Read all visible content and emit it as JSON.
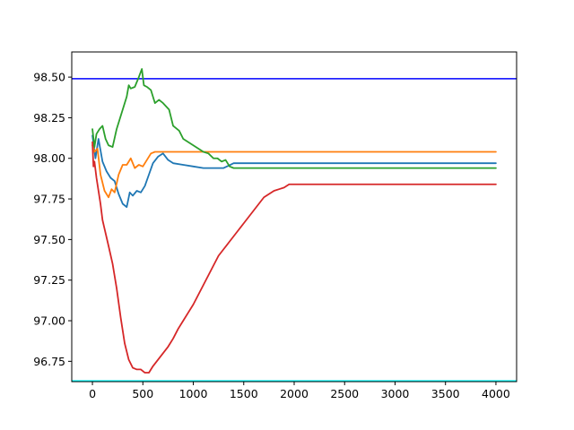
{
  "chart_data": {
    "type": "line",
    "title": "",
    "xlabel": "",
    "ylabel": "",
    "xlim": [
      -205,
      4205
    ],
    "ylim": [
      96.625,
      98.655
    ],
    "grid": false,
    "legend": "none",
    "x_ticks": [
      0,
      500,
      1000,
      1500,
      2000,
      2500,
      3000,
      3500,
      4000
    ],
    "x_tick_labels": [
      "0",
      "500",
      "1000",
      "1500",
      "2000",
      "2500",
      "3000",
      "3500",
      "4000"
    ],
    "y_ticks": [
      96.75,
      97.0,
      97.25,
      97.5,
      97.75,
      98.0,
      98.25,
      98.5
    ],
    "y_tick_labels": [
      "96.75",
      "97.00",
      "97.25",
      "97.50",
      "97.75",
      "98.00",
      "98.25",
      "98.50"
    ],
    "hlines": [
      {
        "y": 98.49,
        "color": "#0000ff"
      },
      {
        "y": 96.63,
        "color": "#00ffff"
      }
    ],
    "series": [
      {
        "color": "#1f77b4",
        "x": [
          0,
          30,
          60,
          100,
          140,
          180,
          220,
          260,
          300,
          340,
          370,
          400,
          440,
          480,
          520,
          560,
          600,
          650,
          700,
          750,
          800,
          900,
          1000,
          1100,
          1200,
          1300,
          1400,
          1500,
          2000,
          2500,
          3000,
          3500,
          4000
        ],
        "y": [
          98.14,
          98.0,
          98.12,
          97.98,
          97.92,
          97.88,
          97.86,
          97.78,
          97.72,
          97.7,
          97.79,
          97.77,
          97.8,
          97.79,
          97.83,
          97.9,
          97.97,
          98.01,
          98.03,
          97.99,
          97.97,
          97.96,
          97.95,
          97.94,
          97.94,
          97.94,
          97.97,
          97.97,
          97.97,
          97.97,
          97.97,
          97.97,
          97.97
        ]
      },
      {
        "color": "#ff7f0e",
        "x": [
          0,
          20,
          50,
          80,
          120,
          160,
          190,
          220,
          260,
          300,
          340,
          380,
          420,
          460,
          500,
          540,
          580,
          620,
          700,
          800,
          1000,
          1500,
          2000,
          2500,
          3000,
          3500,
          4000
        ],
        "y": [
          98.08,
          98.04,
          98.06,
          97.9,
          97.8,
          97.76,
          97.81,
          97.79,
          97.9,
          97.96,
          97.96,
          98.0,
          97.94,
          97.96,
          97.95,
          97.99,
          98.03,
          98.04,
          98.04,
          98.04,
          98.04,
          98.04,
          98.04,
          98.04,
          98.04,
          98.04,
          98.04
        ]
      },
      {
        "color": "#2ca02c",
        "x": [
          0,
          20,
          40,
          70,
          100,
          130,
          160,
          200,
          240,
          270,
          300,
          340,
          360,
          380,
          420,
          460,
          490,
          510,
          540,
          580,
          620,
          660,
          700,
          760,
          800,
          860,
          900,
          950,
          1000,
          1050,
          1100,
          1150,
          1200,
          1240,
          1280,
          1320,
          1360,
          1400,
          1500,
          2000,
          2500,
          3000,
          3500,
          4000
        ],
        "y": [
          98.18,
          98.07,
          98.15,
          98.18,
          98.2,
          98.12,
          98.08,
          98.07,
          98.18,
          98.24,
          98.3,
          98.38,
          98.45,
          98.43,
          98.44,
          98.5,
          98.55,
          98.45,
          98.44,
          98.42,
          98.34,
          98.36,
          98.34,
          98.3,
          98.2,
          98.17,
          98.12,
          98.1,
          98.08,
          98.06,
          98.04,
          98.03,
          98.0,
          98.0,
          97.98,
          97.99,
          97.95,
          97.94,
          97.94,
          97.94,
          97.94,
          97.94,
          97.94,
          97.94
        ]
      },
      {
        "color": "#d62728",
        "x": [
          0,
          10,
          20,
          40,
          60,
          80,
          100,
          130,
          160,
          200,
          240,
          280,
          320,
          360,
          400,
          440,
          480,
          520,
          560,
          600,
          650,
          700,
          750,
          800,
          850,
          900,
          950,
          1000,
          1050,
          1100,
          1150,
          1200,
          1250,
          1300,
          1350,
          1400,
          1450,
          1500,
          1550,
          1600,
          1650,
          1700,
          1750,
          1800,
          1850,
          1900,
          1950,
          2000,
          2100,
          2500,
          3000,
          3500,
          4000
        ],
        "y": [
          98.1,
          97.95,
          97.98,
          97.88,
          97.8,
          97.72,
          97.62,
          97.54,
          97.46,
          97.35,
          97.2,
          97.02,
          96.86,
          96.76,
          96.71,
          96.7,
          96.7,
          96.68,
          96.68,
          96.72,
          96.76,
          96.8,
          96.84,
          96.89,
          96.95,
          97.0,
          97.05,
          97.1,
          97.16,
          97.22,
          97.28,
          97.34,
          97.4,
          97.44,
          97.48,
          97.52,
          97.56,
          97.6,
          97.64,
          97.68,
          97.72,
          97.76,
          97.78,
          97.8,
          97.81,
          97.82,
          97.84,
          97.84,
          97.84,
          97.84,
          97.84,
          97.84,
          97.84
        ]
      }
    ]
  }
}
